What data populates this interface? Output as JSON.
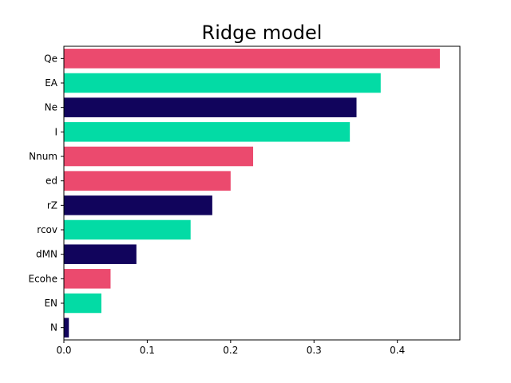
{
  "chart_data": {
    "type": "bar",
    "orientation": "horizontal",
    "title": "Ridge model",
    "xlabel": "",
    "ylabel": "",
    "xlim": [
      0,
      0.475
    ],
    "xticks": [
      "0.0",
      "0.1",
      "0.2",
      "0.3",
      "0.4"
    ],
    "grid": false,
    "categories": [
      "Qe",
      "EA",
      "Ne",
      "I",
      "Nnum",
      "ed",
      "rZ",
      "rcov",
      "dMN",
      "Ecohe",
      "EN",
      "N"
    ],
    "values": [
      0.451,
      0.38,
      0.351,
      0.343,
      0.227,
      0.2,
      0.178,
      0.152,
      0.087,
      0.056,
      0.045,
      0.006
    ],
    "colors": [
      "#eb4a6e",
      "#03dba5",
      "#11045c",
      "#03dba5",
      "#eb4a6e",
      "#eb4a6e",
      "#11045c",
      "#03dba5",
      "#11045c",
      "#eb4a6e",
      "#03dba5",
      "#11045c"
    ]
  }
}
